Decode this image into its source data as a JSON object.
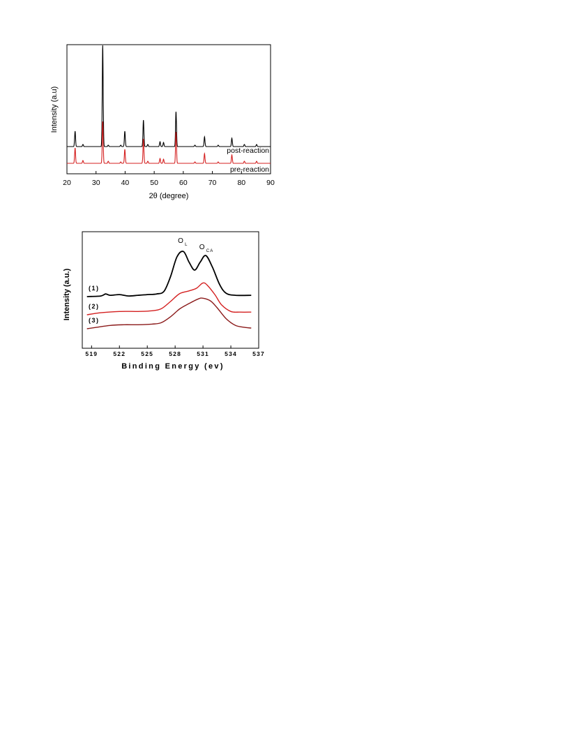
{
  "colors": {
    "black": "#000000",
    "red": "#d42020",
    "darkred": "#8b1a1a"
  },
  "chart_data": [
    {
      "type": "line",
      "xlabel": "2θ (degree)",
      "ylabel": "Intensity (a.u)",
      "xlim": [
        20,
        90
      ],
      "xticks": [
        20,
        30,
        40,
        50,
        60,
        70,
        80,
        90
      ],
      "tick_labels": [
        "20",
        "30",
        "40",
        "50",
        "60",
        "70",
        "80",
        "90"
      ],
      "grid": false,
      "series": [
        {
          "name": "post-reaction",
          "color": "black",
          "baseline": 0,
          "peaks": [
            [
              22.8,
              22
            ],
            [
              25.5,
              3
            ],
            [
              32.3,
              145
            ],
            [
              34.2,
              2
            ],
            [
              38.5,
              2
            ],
            [
              39.9,
              22
            ],
            [
              46.3,
              38
            ],
            [
              47.8,
              3
            ],
            [
              52,
              7
            ],
            [
              53.2,
              6
            ],
            [
              57.5,
              50
            ],
            [
              64,
              2
            ],
            [
              67.3,
              14
            ],
            [
              72,
              2
            ],
            [
              76.7,
              12
            ],
            [
              81,
              3
            ],
            [
              85.2,
              3
            ]
          ]
        },
        {
          "name": "pre-reaction",
          "color": "red",
          "baseline": 0,
          "peaks": [
            [
              22.8,
              22
            ],
            [
              25.5,
              4
            ],
            [
              32.3,
              60
            ],
            [
              34.2,
              3
            ],
            [
              38.5,
              2
            ],
            [
              39.9,
              20
            ],
            [
              46.3,
              35
            ],
            [
              47.8,
              3
            ],
            [
              52,
              7
            ],
            [
              53.2,
              6
            ],
            [
              57.5,
              45
            ],
            [
              64,
              2
            ],
            [
              67.3,
              14
            ],
            [
              72,
              2
            ],
            [
              76.7,
              12
            ],
            [
              81,
              3
            ],
            [
              85.2,
              3
            ]
          ]
        }
      ]
    },
    {
      "type": "line",
      "xlabel": "Binding Energy (ev)",
      "ylabel": "Intensity (a.u.)",
      "xlim": [
        518,
        537
      ],
      "xticks": [
        519,
        522,
        525,
        528,
        531,
        534,
        537
      ],
      "tick_labels": [
        "519",
        "522",
        "525",
        "528",
        "531",
        "534",
        "537"
      ],
      "grid": false,
      "annotations": [
        {
          "main": "O",
          "sub": "L",
          "x": 528.9
        },
        {
          "main": "O",
          "sub": "CA",
          "x": 531.2
        }
      ],
      "series": [
        {
          "name": "(1)",
          "color": "black",
          "baseline": 0,
          "x": [
            518.5,
            520,
            520.5,
            521,
            522,
            523,
            524,
            525,
            526,
            526.8,
            527.5,
            528.2,
            528.9,
            529.5,
            530.1,
            530.7,
            531.3,
            532,
            532.8,
            533.5,
            534.5,
            536.2
          ],
          "y": [
            0,
            1,
            4,
            2,
            3,
            1,
            2,
            3,
            4,
            8,
            30,
            60,
            68,
            52,
            40,
            52,
            62,
            45,
            18,
            5,
            2,
            2
          ]
        },
        {
          "name": "(2)",
          "color": "red",
          "baseline": 0,
          "x": [
            518.5,
            520,
            522,
            524,
            525.5,
            526.5,
            527.5,
            528.5,
            529.5,
            530.3,
            531,
            531.5,
            532.3,
            533,
            534,
            535,
            536.2
          ],
          "y": [
            0,
            3,
            5,
            5,
            6,
            9,
            20,
            32,
            36,
            40,
            48,
            44,
            30,
            15,
            5,
            4,
            4
          ]
        },
        {
          "name": "(3)",
          "color": "darkred",
          "baseline": 0,
          "x": [
            518.5,
            519.5,
            521,
            522.5,
            524,
            525.5,
            526.5,
            527.5,
            528.5,
            529.5,
            530.5,
            531,
            531.8,
            532.5,
            533.5,
            534.5,
            535.5,
            536.2
          ],
          "y": [
            0,
            2,
            5,
            6,
            6,
            7,
            9,
            18,
            30,
            38,
            45,
            46,
            42,
            32,
            15,
            5,
            2,
            1
          ]
        }
      ]
    }
  ]
}
